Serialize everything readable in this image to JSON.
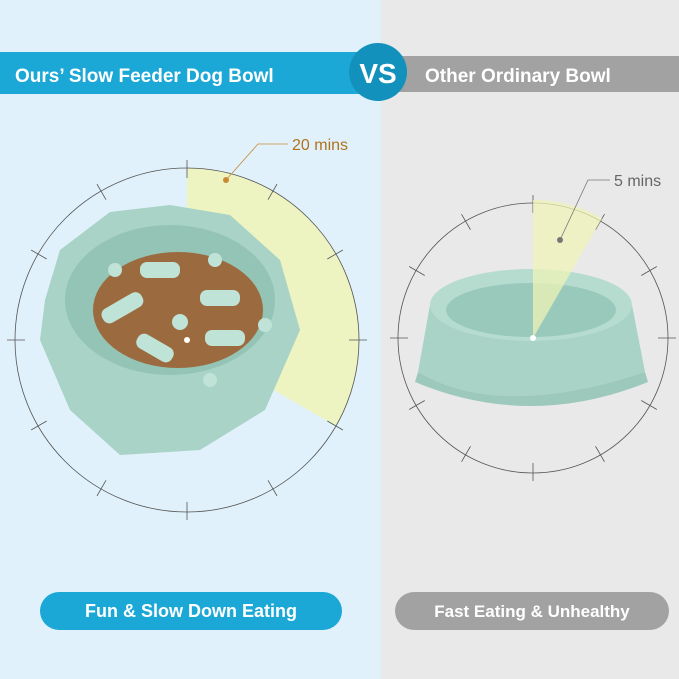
{
  "header": {
    "left_title": "Ours’ Slow Feeder Dog Bowl",
    "vs": "VS",
    "right_title": "Other Ordinary Bowl"
  },
  "left_panel": {
    "time_label": "20 mins",
    "minutes": 20,
    "caption": "Fun & Slow Down Eating"
  },
  "right_panel": {
    "time_label": "5 mins",
    "minutes": 5,
    "caption": "Fast Eating & Unhealthy"
  },
  "colors": {
    "blue": "#1ba8d6",
    "vs_circle": "#1391bd",
    "gray": "#a2a2a2",
    "left_bg": "#e0f1fb",
    "right_bg": "#e9e9e9",
    "wedge": "#eef3b6",
    "time_text": "#b0731c",
    "bowl": "#a8d3c6"
  }
}
